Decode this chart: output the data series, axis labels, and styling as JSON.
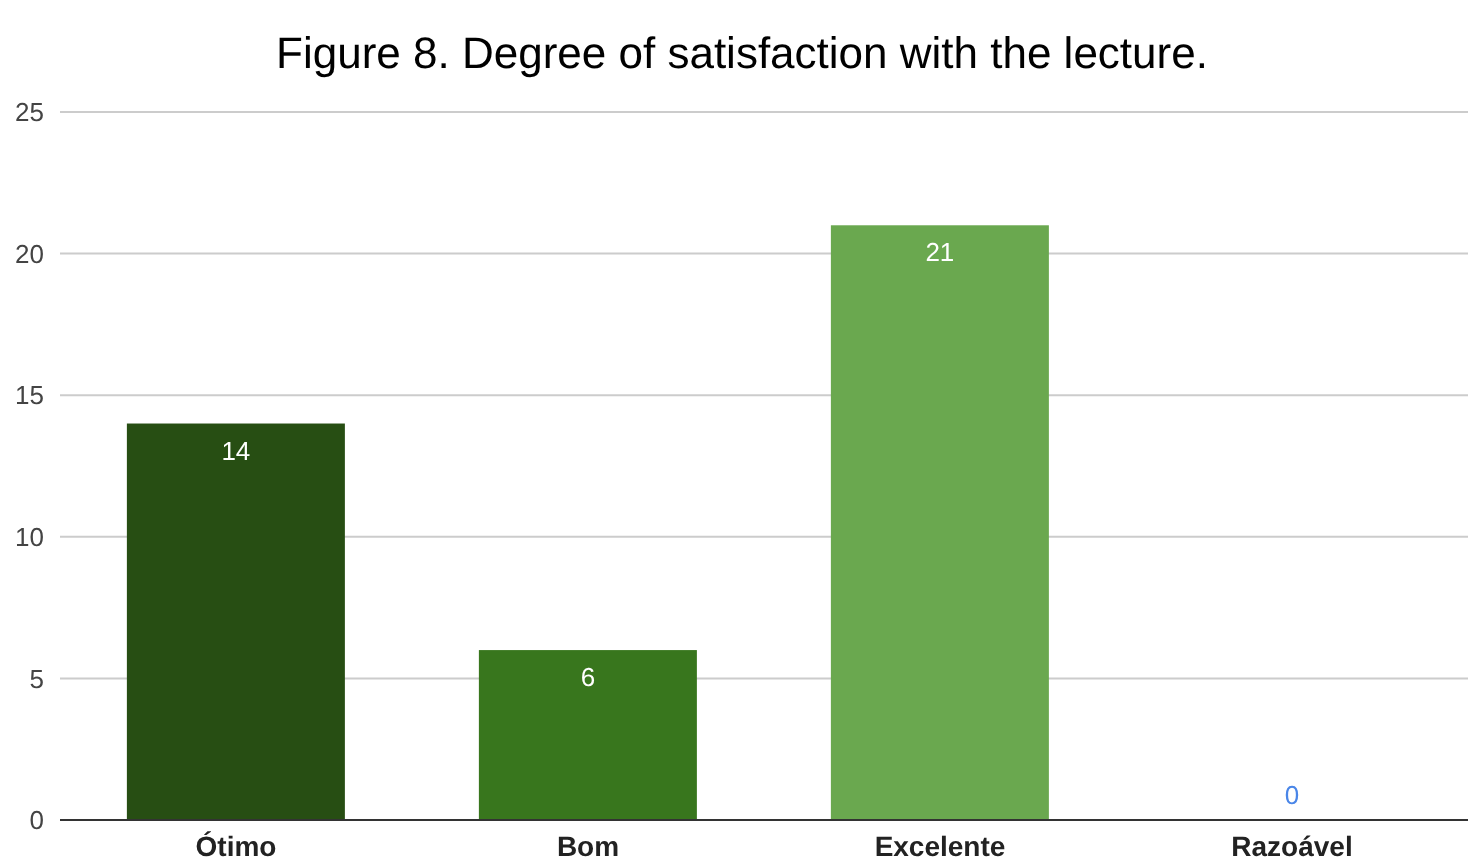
{
  "chart_data": {
    "type": "bar",
    "title": "Figure 8. Degree of satisfaction with the lecture.",
    "categories": [
      "Ótimo",
      "Bom",
      "Excelente",
      "Razoável"
    ],
    "values": [
      14,
      6,
      21,
      0
    ],
    "colors": [
      "#274e13",
      "#38761d",
      "#6aa84f",
      "#4a86e8"
    ],
    "ylim": [
      0,
      25
    ],
    "yticks": [
      0,
      5,
      10,
      15,
      20,
      25
    ],
    "grid": "y",
    "data_labels": true
  }
}
